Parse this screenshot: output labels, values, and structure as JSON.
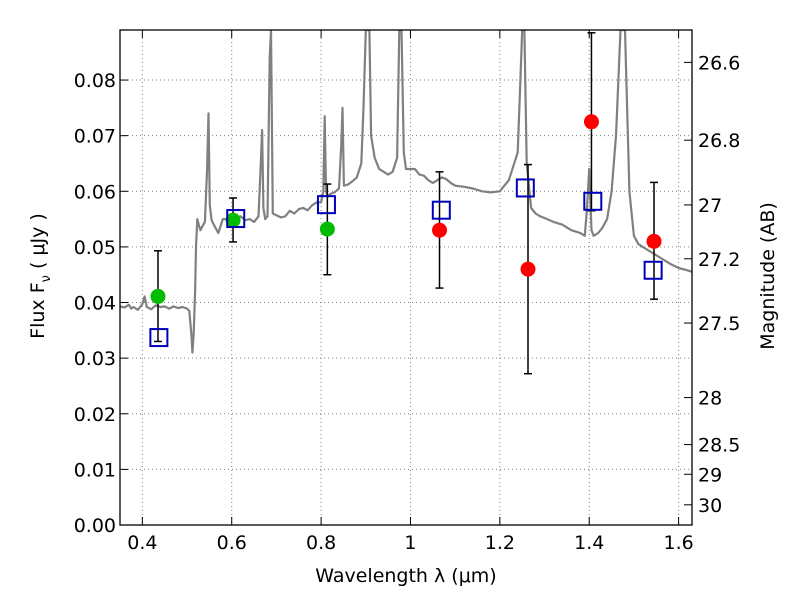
{
  "chart_data": {
    "type": "scatter",
    "xlabel": "Wavelength  λ (μm)",
    "ylabel_parts": [
      "Flux  F",
      "ν",
      " ( μJy )"
    ],
    "y2label": "Magnitude (AB)",
    "xlim": [
      0.35,
      1.63
    ],
    "ylim": [
      0.0,
      0.089
    ],
    "grid": true,
    "x_ticks": [
      {
        "value": 0.4,
        "label": "0.4"
      },
      {
        "value": 0.6,
        "label": "0.6"
      },
      {
        "value": 0.8,
        "label": "0.8"
      },
      {
        "value": 1.0,
        "label": "1"
      },
      {
        "value": 1.2,
        "label": "1.2"
      },
      {
        "value": 1.4,
        "label": "1.4"
      },
      {
        "value": 1.6,
        "label": "1.6"
      }
    ],
    "y_ticks": [
      {
        "value": 0.0,
        "label": "0.00"
      },
      {
        "value": 0.01,
        "label": "0.01"
      },
      {
        "value": 0.02,
        "label": "0.02"
      },
      {
        "value": 0.03,
        "label": "0.03"
      },
      {
        "value": 0.04,
        "label": "0.04"
      },
      {
        "value": 0.05,
        "label": "0.05"
      },
      {
        "value": 0.06,
        "label": "0.06"
      },
      {
        "value": 0.07,
        "label": "0.07"
      },
      {
        "value": 0.08,
        "label": "0.08"
      }
    ],
    "mag_ticks": [
      {
        "value": 26.6,
        "label": "26.6"
      },
      {
        "value": 26.8,
        "label": "26.8"
      },
      {
        "value": 27.0,
        "label": "27"
      },
      {
        "value": 27.2,
        "label": "27.2"
      },
      {
        "value": 27.5,
        "label": "27.5"
      },
      {
        "value": 28.0,
        "label": "28"
      },
      {
        "value": 28.5,
        "label": "28.5"
      },
      {
        "value": 29.0,
        "label": "29"
      },
      {
        "value": 30.0,
        "label": "30"
      }
    ],
    "series": [
      {
        "kind": "line",
        "color": "#808080",
        "points": [
          [
            0.35,
            0.0393
          ],
          [
            0.36,
            0.0391
          ],
          [
            0.37,
            0.0396
          ],
          [
            0.375,
            0.0389
          ],
          [
            0.38,
            0.0392
          ],
          [
            0.39,
            0.0387
          ],
          [
            0.4,
            0.0397
          ],
          [
            0.405,
            0.0411
          ],
          [
            0.41,
            0.0392
          ],
          [
            0.42,
            0.0388
          ],
          [
            0.43,
            0.0395
          ],
          [
            0.44,
            0.0392
          ],
          [
            0.45,
            0.0393
          ],
          [
            0.46,
            0.0389
          ],
          [
            0.47,
            0.0393
          ],
          [
            0.48,
            0.039
          ],
          [
            0.49,
            0.0392
          ],
          [
            0.5,
            0.0389
          ],
          [
            0.505,
            0.0385
          ],
          [
            0.51,
            0.034
          ],
          [
            0.512,
            0.031
          ],
          [
            0.515,
            0.0345
          ],
          [
            0.518,
            0.042
          ],
          [
            0.52,
            0.05
          ],
          [
            0.523,
            0.055
          ],
          [
            0.526,
            0.054
          ],
          [
            0.53,
            0.053
          ],
          [
            0.535,
            0.0538
          ],
          [
            0.54,
            0.0545
          ],
          [
            0.545,
            0.064
          ],
          [
            0.548,
            0.074
          ],
          [
            0.551,
            0.0575
          ],
          [
            0.555,
            0.0548
          ],
          [
            0.56,
            0.054
          ],
          [
            0.57,
            0.0525
          ],
          [
            0.58,
            0.055
          ],
          [
            0.59,
            0.055
          ],
          [
            0.6,
            0.0548
          ],
          [
            0.61,
            0.0552
          ],
          [
            0.62,
            0.0555
          ],
          [
            0.63,
            0.0548
          ],
          [
            0.64,
            0.055
          ],
          [
            0.65,
            0.0545
          ],
          [
            0.66,
            0.0555
          ],
          [
            0.665,
            0.065
          ],
          [
            0.668,
            0.071
          ],
          [
            0.671,
            0.057
          ],
          [
            0.675,
            0.055
          ],
          [
            0.68,
            0.0555
          ],
          [
            0.685,
            0.084
          ],
          [
            0.688,
            0.089
          ],
          [
            0.692,
            0.056
          ],
          [
            0.7,
            0.0557
          ],
          [
            0.71,
            0.0553
          ],
          [
            0.72,
            0.0555
          ],
          [
            0.73,
            0.0565
          ],
          [
            0.74,
            0.056
          ],
          [
            0.75,
            0.0568
          ],
          [
            0.76,
            0.057
          ],
          [
            0.77,
            0.0566
          ],
          [
            0.78,
            0.0575
          ],
          [
            0.79,
            0.058
          ],
          [
            0.8,
            0.058
          ],
          [
            0.805,
            0.06
          ],
          [
            0.808,
            0.0735
          ],
          [
            0.811,
            0.06
          ],
          [
            0.815,
            0.059
          ],
          [
            0.82,
            0.0595
          ],
          [
            0.83,
            0.0598
          ],
          [
            0.84,
            0.0605
          ],
          [
            0.845,
            0.068
          ],
          [
            0.848,
            0.075
          ],
          [
            0.851,
            0.061
          ],
          [
            0.86,
            0.0612
          ],
          [
            0.87,
            0.0618
          ],
          [
            0.88,
            0.0625
          ],
          [
            0.89,
            0.065
          ],
          [
            0.895,
            0.075
          ],
          [
            0.9,
            0.089
          ],
          [
            0.908,
            0.089
          ],
          [
            0.912,
            0.07
          ],
          [
            0.92,
            0.066
          ],
          [
            0.93,
            0.064
          ],
          [
            0.94,
            0.0635
          ],
          [
            0.95,
            0.063
          ],
          [
            0.96,
            0.0635
          ],
          [
            0.97,
            0.066
          ],
          [
            0.975,
            0.089
          ],
          [
            0.98,
            0.089
          ],
          [
            0.985,
            0.067
          ],
          [
            0.99,
            0.064
          ],
          [
            1.0,
            0.064
          ],
          [
            1.01,
            0.064
          ],
          [
            1.02,
            0.063
          ],
          [
            1.03,
            0.0628
          ],
          [
            1.04,
            0.062
          ],
          [
            1.05,
            0.0615
          ],
          [
            1.06,
            0.062
          ],
          [
            1.07,
            0.0625
          ],
          [
            1.08,
            0.0622
          ],
          [
            1.09,
            0.0615
          ],
          [
            1.1,
            0.061
          ],
          [
            1.12,
            0.0608
          ],
          [
            1.14,
            0.0605
          ],
          [
            1.16,
            0.06
          ],
          [
            1.18,
            0.0598
          ],
          [
            1.2,
            0.06
          ],
          [
            1.21,
            0.061
          ],
          [
            1.22,
            0.062
          ],
          [
            1.23,
            0.0645
          ],
          [
            1.24,
            0.067
          ],
          [
            1.245,
            0.078
          ],
          [
            1.25,
            0.089
          ],
          [
            1.255,
            0.089
          ],
          [
            1.26,
            0.065
          ],
          [
            1.27,
            0.057
          ],
          [
            1.28,
            0.056
          ],
          [
            1.29,
            0.0555
          ],
          [
            1.3,
            0.0552
          ],
          [
            1.32,
            0.0545
          ],
          [
            1.34,
            0.054
          ],
          [
            1.36,
            0.053
          ],
          [
            1.38,
            0.0525
          ],
          [
            1.39,
            0.052
          ],
          [
            1.395,
            0.057
          ],
          [
            1.4,
            0.064
          ],
          [
            1.405,
            0.053
          ],
          [
            1.41,
            0.052
          ],
          [
            1.42,
            0.0525
          ],
          [
            1.43,
            0.0535
          ],
          [
            1.44,
            0.055
          ],
          [
            1.45,
            0.06
          ],
          [
            1.46,
            0.07
          ],
          [
            1.47,
            0.089
          ],
          [
            1.48,
            0.089
          ],
          [
            1.49,
            0.06
          ],
          [
            1.5,
            0.052
          ],
          [
            1.51,
            0.0505
          ],
          [
            1.52,
            0.05
          ],
          [
            1.54,
            0.049
          ],
          [
            1.56,
            0.048
          ],
          [
            1.58,
            0.047
          ],
          [
            1.6,
            0.0462
          ],
          [
            1.62,
            0.0458
          ],
          [
            1.63,
            0.0455
          ]
        ]
      },
      {
        "kind": "points",
        "marker": "circle",
        "color": "#ff0000",
        "points": [
          {
            "x": 1.065,
            "y": 0.053,
            "err": [
              0.0426,
              0.0635
            ]
          },
          {
            "x": 1.263,
            "y": 0.046,
            "err": [
              0.0272,
              0.0648
            ]
          },
          {
            "x": 1.405,
            "y": 0.0725,
            "err": [
              0.0565,
              0.0885
            ]
          },
          {
            "x": 1.545,
            "y": 0.051,
            "err": [
              0.0406,
              0.0616
            ]
          }
        ]
      },
      {
        "kind": "points",
        "marker": "circle",
        "color": "#00bb00",
        "points": [
          {
            "x": 0.435,
            "y": 0.0411,
            "err": [
              0.033,
              0.0493
            ]
          },
          {
            "x": 0.603,
            "y": 0.0548,
            "err": [
              0.0509,
              0.0588
            ]
          },
          {
            "x": 0.814,
            "y": 0.0532,
            "err": [
              0.045,
              0.0613
            ]
          }
        ]
      },
      {
        "kind": "points",
        "marker": "open-square",
        "color": "#0000bb",
        "points": [
          {
            "x": 0.437,
            "y": 0.0337
          },
          {
            "x": 0.609,
            "y": 0.0551
          },
          {
            "x": 0.812,
            "y": 0.0576
          },
          {
            "x": 1.069,
            "y": 0.0566
          },
          {
            "x": 1.257,
            "y": 0.0606
          },
          {
            "x": 1.408,
            "y": 0.0582
          },
          {
            "x": 1.543,
            "y": 0.0458
          }
        ]
      }
    ]
  }
}
